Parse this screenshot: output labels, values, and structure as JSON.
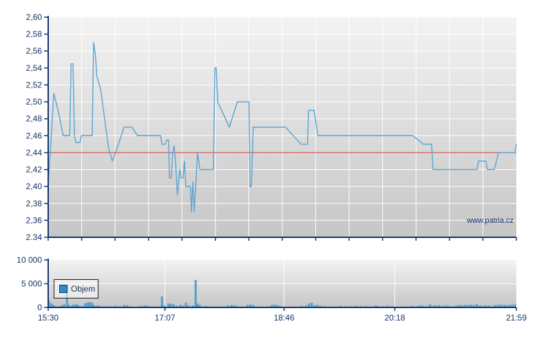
{
  "watermark": "www.patria.cz",
  "volume_legend": {
    "label": "Objem",
    "marker": "blue-square"
  },
  "colors": {
    "line_blue": "#5fa7d3",
    "bar_blue": "#4f9fd0",
    "legend_square_blue": "#2f8cc3",
    "reference_red": "#cf2e2e",
    "axis_navy": "#12356b",
    "label_navy": "#12356b",
    "plot_gradient_top": "#f3f3f3",
    "plot_gradient_bottom": "#c6c6c6",
    "grid_white": "#ffffff",
    "page_background": "#ffffff"
  },
  "chart_data": [
    {
      "type": "line",
      "title": "",
      "xlabel": "",
      "ylabel": "",
      "ylim": [
        2.34,
        2.6
      ],
      "grid": true,
      "minor_x_divisions": 14,
      "reference_line_y": 2.44,
      "yticks": [
        {
          "value": 2.6,
          "label": "2,60"
        },
        {
          "value": 2.58,
          "label": "2,58"
        },
        {
          "value": 2.56,
          "label": "2,56"
        },
        {
          "value": 2.54,
          "label": "2,54"
        },
        {
          "value": 2.52,
          "label": "2,52"
        },
        {
          "value": 2.5,
          "label": "2,50"
        },
        {
          "value": 2.48,
          "label": "2,48"
        },
        {
          "value": 2.46,
          "label": "2,46"
        },
        {
          "value": 2.44,
          "label": "2,44"
        },
        {
          "value": 2.42,
          "label": "2,42"
        },
        {
          "value": 2.4,
          "label": "2,40"
        },
        {
          "value": 2.38,
          "label": "2,38"
        },
        {
          "value": 2.36,
          "label": "2,36"
        },
        {
          "value": 2.34,
          "label": "2.34"
        }
      ],
      "x_time_span": [
        "15:30",
        "21:59"
      ],
      "points": [
        [
          0.001,
          2.41
        ],
        [
          0.012,
          2.51
        ],
        [
          0.021,
          2.49
        ],
        [
          0.032,
          2.46
        ],
        [
          0.046,
          2.46
        ],
        [
          0.049,
          2.545
        ],
        [
          0.053,
          2.545
        ],
        [
          0.056,
          2.46
        ],
        [
          0.059,
          2.452
        ],
        [
          0.068,
          2.452
        ],
        [
          0.071,
          2.46
        ],
        [
          0.094,
          2.46
        ],
        [
          0.097,
          2.57
        ],
        [
          0.101,
          2.555
        ],
        [
          0.104,
          2.53
        ],
        [
          0.112,
          2.515
        ],
        [
          0.129,
          2.445
        ],
        [
          0.137,
          2.43
        ],
        [
          0.144,
          2.44
        ],
        [
          0.162,
          2.47
        ],
        [
          0.179,
          2.47
        ],
        [
          0.191,
          2.46
        ],
        [
          0.24,
          2.46
        ],
        [
          0.243,
          2.45
        ],
        [
          0.25,
          2.45
        ],
        [
          0.253,
          2.455
        ],
        [
          0.257,
          2.455
        ],
        [
          0.259,
          2.41
        ],
        [
          0.263,
          2.41
        ],
        [
          0.266,
          2.44
        ],
        [
          0.269,
          2.448
        ],
        [
          0.272,
          2.43
        ],
        [
          0.276,
          2.39
        ],
        [
          0.281,
          2.42
        ],
        [
          0.284,
          2.41
        ],
        [
          0.288,
          2.41
        ],
        [
          0.291,
          2.43
        ],
        [
          0.294,
          2.4
        ],
        [
          0.304,
          2.4
        ],
        [
          0.306,
          2.37
        ],
        [
          0.309,
          2.405
        ],
        [
          0.312,
          2.37
        ],
        [
          0.315,
          2.4
        ],
        [
          0.319,
          2.44
        ],
        [
          0.324,
          2.42
        ],
        [
          0.353,
          2.42
        ],
        [
          0.356,
          2.54
        ],
        [
          0.359,
          2.54
        ],
        [
          0.362,
          2.5
        ],
        [
          0.387,
          2.47
        ],
        [
          0.404,
          2.5
        ],
        [
          0.429,
          2.5
        ],
        [
          0.431,
          2.4
        ],
        [
          0.434,
          2.4
        ],
        [
          0.438,
          2.47
        ],
        [
          0.507,
          2.47
        ],
        [
          0.54,
          2.45
        ],
        [
          0.554,
          2.45
        ],
        [
          0.556,
          2.49
        ],
        [
          0.568,
          2.49
        ],
        [
          0.576,
          2.46
        ],
        [
          0.779,
          2.46
        ],
        [
          0.801,
          2.45
        ],
        [
          0.819,
          2.45
        ],
        [
          0.822,
          2.42
        ],
        [
          0.916,
          2.42
        ],
        [
          0.919,
          2.43
        ],
        [
          0.935,
          2.43
        ],
        [
          0.938,
          2.42
        ],
        [
          0.953,
          2.42
        ],
        [
          0.962,
          2.44
        ],
        [
          0.997,
          2.44
        ],
        [
          1.0,
          2.45
        ]
      ]
    },
    {
      "type": "bar",
      "title": "",
      "series_name": "Objem",
      "ylim": [
        0,
        10000
      ],
      "grid": true,
      "yticks": [
        {
          "value": 0,
          "label": "0"
        },
        {
          "value": 5000,
          "label": "5 000"
        },
        {
          "value": 10000,
          "label": "10 000"
        }
      ],
      "xticks": [
        {
          "f": 0.0,
          "label": "15:30"
        },
        {
          "f": 0.2494,
          "label": "17:07"
        },
        {
          "f": 0.5039,
          "label": "18:46"
        },
        {
          "f": 0.7404,
          "label": "20:18"
        },
        {
          "f": 1.0,
          "label": "21:59"
        }
      ],
      "bars": [
        [
          0.001,
          1500
        ],
        [
          0.006,
          900
        ],
        [
          0.01,
          600
        ],
        [
          0.015,
          300
        ],
        [
          0.024,
          250
        ],
        [
          0.029,
          400
        ],
        [
          0.034,
          700
        ],
        [
          0.04,
          4700
        ],
        [
          0.044,
          500
        ],
        [
          0.05,
          350
        ],
        [
          0.054,
          600
        ],
        [
          0.059,
          650
        ],
        [
          0.063,
          550
        ],
        [
          0.068,
          300
        ],
        [
          0.074,
          250
        ],
        [
          0.079,
          900
        ],
        [
          0.084,
          1000
        ],
        [
          0.088,
          1100
        ],
        [
          0.093,
          1050
        ],
        [
          0.097,
          500
        ],
        [
          0.103,
          350
        ],
        [
          0.109,
          400
        ],
        [
          0.118,
          200
        ],
        [
          0.126,
          250
        ],
        [
          0.134,
          200
        ],
        [
          0.144,
          300
        ],
        [
          0.153,
          250
        ],
        [
          0.163,
          500
        ],
        [
          0.169,
          450
        ],
        [
          0.176,
          200
        ],
        [
          0.187,
          150
        ],
        [
          0.197,
          300
        ],
        [
          0.206,
          400
        ],
        [
          0.212,
          350
        ],
        [
          0.224,
          200
        ],
        [
          0.234,
          150
        ],
        [
          0.243,
          2300
        ],
        [
          0.247,
          400
        ],
        [
          0.257,
          800
        ],
        [
          0.262,
          750
        ],
        [
          0.268,
          700
        ],
        [
          0.274,
          300
        ],
        [
          0.282,
          500
        ],
        [
          0.287,
          350
        ],
        [
          0.294,
          1000
        ],
        [
          0.299,
          400
        ],
        [
          0.309,
          350
        ],
        [
          0.315,
          5800
        ],
        [
          0.319,
          800
        ],
        [
          0.324,
          500
        ],
        [
          0.331,
          200
        ],
        [
          0.338,
          300
        ],
        [
          0.347,
          200
        ],
        [
          0.354,
          150
        ],
        [
          0.365,
          200
        ],
        [
          0.375,
          150
        ],
        [
          0.384,
          400
        ],
        [
          0.391,
          500
        ],
        [
          0.397,
          450
        ],
        [
          0.403,
          300
        ],
        [
          0.415,
          200
        ],
        [
          0.426,
          550
        ],
        [
          0.432,
          600
        ],
        [
          0.438,
          500
        ],
        [
          0.446,
          200
        ],
        [
          0.456,
          150
        ],
        [
          0.468,
          200
        ],
        [
          0.478,
          550
        ],
        [
          0.484,
          600
        ],
        [
          0.49,
          500
        ],
        [
          0.496,
          250
        ],
        [
          0.507,
          150
        ],
        [
          0.519,
          200
        ],
        [
          0.529,
          150
        ],
        [
          0.541,
          300
        ],
        [
          0.551,
          400
        ],
        [
          0.557,
          800
        ],
        [
          0.563,
          1000
        ],
        [
          0.569,
          450
        ],
        [
          0.575,
          550
        ],
        [
          0.582,
          300
        ],
        [
          0.591,
          200
        ],
        [
          0.603,
          250
        ],
        [
          0.615,
          150
        ],
        [
          0.625,
          300
        ],
        [
          0.635,
          250
        ],
        [
          0.647,
          200
        ],
        [
          0.657,
          300
        ],
        [
          0.668,
          250
        ],
        [
          0.679,
          300
        ],
        [
          0.688,
          200
        ],
        [
          0.699,
          350
        ],
        [
          0.704,
          300
        ],
        [
          0.715,
          250
        ],
        [
          0.724,
          300
        ],
        [
          0.735,
          200
        ],
        [
          0.747,
          150
        ],
        [
          0.757,
          200
        ],
        [
          0.768,
          150
        ],
        [
          0.776,
          300
        ],
        [
          0.787,
          250
        ],
        [
          0.794,
          400
        ],
        [
          0.8,
          350
        ],
        [
          0.809,
          300
        ],
        [
          0.816,
          650
        ],
        [
          0.824,
          400
        ],
        [
          0.829,
          300
        ],
        [
          0.835,
          450
        ],
        [
          0.843,
          350
        ],
        [
          0.85,
          400
        ],
        [
          0.856,
          300
        ],
        [
          0.865,
          250
        ],
        [
          0.872,
          400
        ],
        [
          0.879,
          500
        ],
        [
          0.885,
          450
        ],
        [
          0.891,
          550
        ],
        [
          0.897,
          500
        ],
        [
          0.903,
          600
        ],
        [
          0.909,
          450
        ],
        [
          0.915,
          700
        ],
        [
          0.921,
          400
        ],
        [
          0.926,
          350
        ],
        [
          0.934,
          450
        ],
        [
          0.941,
          400
        ],
        [
          0.95,
          300
        ],
        [
          0.956,
          500
        ],
        [
          0.962,
          550
        ],
        [
          0.968,
          600
        ],
        [
          0.974,
          500
        ],
        [
          0.979,
          450
        ],
        [
          0.985,
          550
        ],
        [
          0.991,
          600
        ],
        [
          0.997,
          650
        ]
      ]
    }
  ]
}
